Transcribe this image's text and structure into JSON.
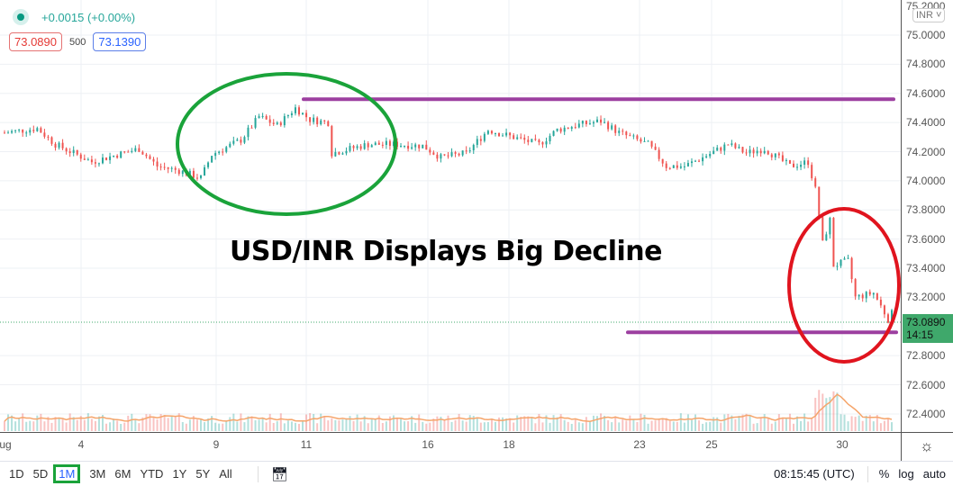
{
  "legend": {
    "change": "+0.0015 (+0.00%)",
    "sell_price": "73.0890",
    "quantity": "500",
    "buy_price": "73.1390"
  },
  "annotation": {
    "title": "USD/INR Displays Big Decline"
  },
  "price_axis": {
    "currency": "INR",
    "ticks": [
      "75.2000",
      "75.0000",
      "74.8000",
      "74.6000",
      "74.4000",
      "74.2000",
      "74.0000",
      "73.8000",
      "73.6000",
      "73.4000",
      "73.2000",
      "72.8000",
      "72.6000",
      "72.4000"
    ],
    "current_price": "73.0890",
    "countdown": "14:15"
  },
  "time_axis": {
    "labels": [
      "ug",
      "4",
      "9",
      "11",
      "16",
      "18",
      "23",
      "25",
      "30"
    ]
  },
  "toolbar": {
    "ranges": [
      "1D",
      "5D",
      "1M",
      "3M",
      "6M",
      "YTD",
      "1Y",
      "5Y",
      "All"
    ],
    "active_range": "1M",
    "clock": "08:15:45 (UTC)",
    "percent": "%",
    "log": "log",
    "auto": "auto"
  },
  "colors": {
    "up": "#26a69a",
    "down": "#ef5350",
    "resistance": "#9c3fa0",
    "support": "#9c3fa0",
    "green_circle": "#1aa33a",
    "red_circle": "#e0141e",
    "current_price_bg": "#3fa86b"
  },
  "chart_data": {
    "type": "candlestick",
    "symbol": "USD/INR",
    "ylim": [
      72.4,
      75.2
    ],
    "levels": [
      74.56,
      72.96
    ],
    "price_path": [
      [
        0,
        74.33
      ],
      [
        9,
        74.36
      ],
      [
        14,
        74.25
      ],
      [
        24,
        74.13
      ],
      [
        31,
        74.18
      ],
      [
        37,
        74.22
      ],
      [
        42,
        74.1
      ],
      [
        48,
        74.07
      ],
      [
        54,
        74.02
      ],
      [
        57,
        74.18
      ],
      [
        65,
        74.28
      ],
      [
        70,
        74.44
      ],
      [
        75,
        74.38
      ],
      [
        80,
        74.5
      ],
      [
        84,
        74.42
      ],
      [
        89,
        74.4
      ],
      [
        90,
        74.19
      ],
      [
        95,
        74.22
      ],
      [
        100,
        74.25
      ],
      [
        107,
        74.25
      ],
      [
        115,
        74.24
      ],
      [
        120,
        74.16
      ],
      [
        127,
        74.19
      ],
      [
        133,
        74.35
      ],
      [
        137,
        74.32
      ],
      [
        147,
        74.25
      ],
      [
        152,
        74.35
      ],
      [
        157,
        74.38
      ],
      [
        164,
        74.41
      ],
      [
        169,
        74.33
      ],
      [
        177,
        74.25
      ],
      [
        182,
        74.1
      ],
      [
        187,
        74.1
      ],
      [
        192,
        74.16
      ],
      [
        199,
        74.25
      ],
      [
        204,
        74.19
      ],
      [
        209,
        74.22
      ],
      [
        216,
        74.1
      ],
      [
        221,
        74.13
      ],
      [
        223,
        73.94
      ],
      [
        225,
        73.57
      ],
      [
        227,
        73.73
      ],
      [
        228,
        73.42
      ],
      [
        232,
        73.45
      ],
      [
        234,
        73.2
      ],
      [
        239,
        73.23
      ],
      [
        243,
        73.05
      ],
      [
        244,
        73.089
      ]
    ]
  }
}
